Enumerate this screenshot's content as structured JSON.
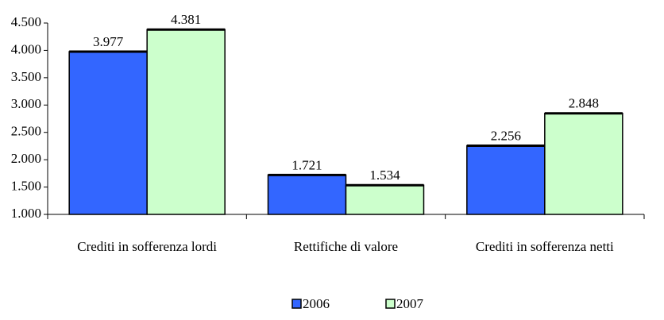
{
  "chart_data": {
    "type": "bar",
    "categories": [
      "Crediti in sofferenza lordi",
      "Rettifiche di valore",
      "Crediti in sofferenza netti"
    ],
    "series": [
      {
        "name": "2006",
        "color": "#3366ff",
        "values": [
          3977,
          1721,
          2256
        ],
        "value_labels": [
          "3.977",
          "1.721",
          "2.256"
        ]
      },
      {
        "name": "2007",
        "color": "#ccffcc",
        "values": [
          4381,
          1534,
          2848
        ],
        "value_labels": [
          "4.381",
          "1.534",
          "2.848"
        ]
      }
    ],
    "ylim": [
      1000,
      4500
    ],
    "yticks": [
      {
        "value": 1000,
        "label": "1.000"
      },
      {
        "value": 1500,
        "label": "1.500"
      },
      {
        "value": 2000,
        "label": "2.000"
      },
      {
        "value": 2500,
        "label": "2.500"
      },
      {
        "value": 3000,
        "label": "3.000"
      },
      {
        "value": 3500,
        "label": "3.500"
      },
      {
        "value": 4000,
        "label": "4.000"
      },
      {
        "value": 4500,
        "label": "4.500"
      }
    ],
    "grid": false,
    "legend": "bottom"
  }
}
